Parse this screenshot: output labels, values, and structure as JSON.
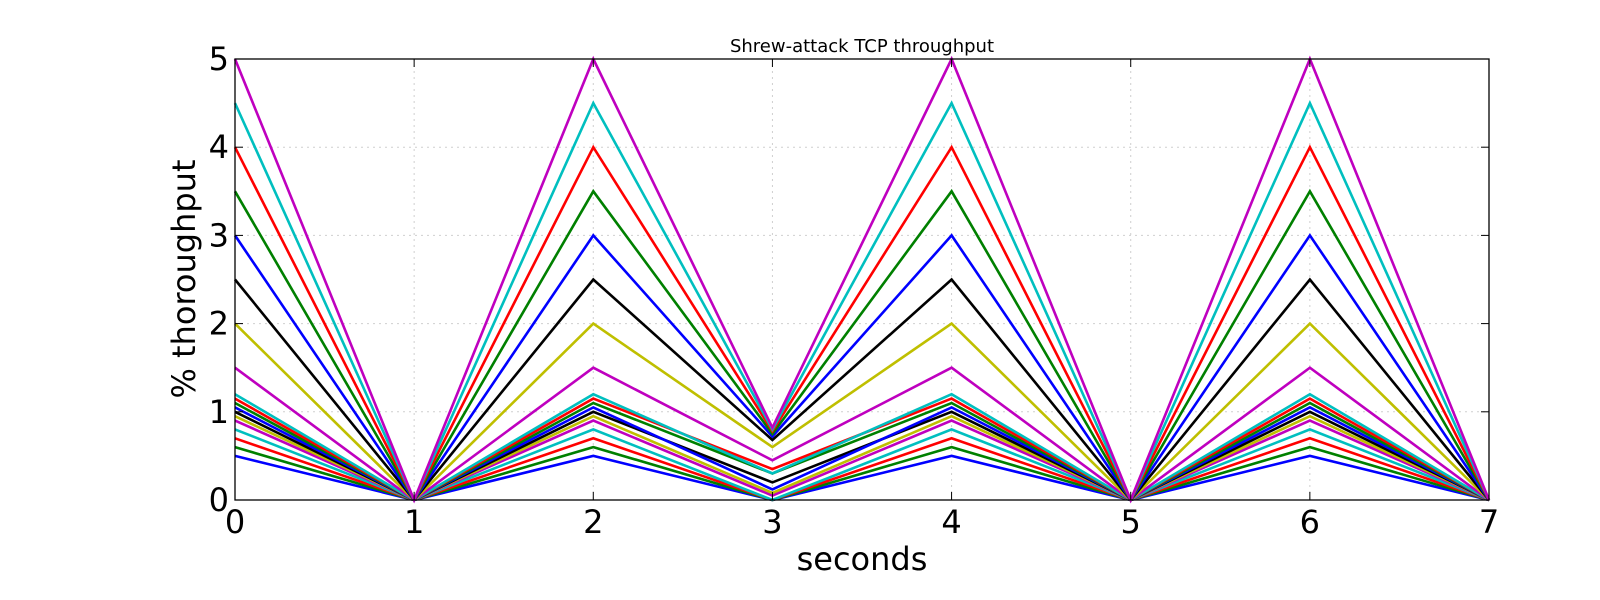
{
  "chart_data": {
    "type": "line",
    "title": "Shrew-attack TCP throughput",
    "xlabel": "seconds",
    "ylabel": "% thoroughput",
    "xlim": [
      0,
      7
    ],
    "ylim": [
      0,
      5
    ],
    "xticks": [
      0,
      1,
      2,
      3,
      4,
      5,
      6,
      7
    ],
    "yticks": [
      0,
      1,
      2,
      3,
      4,
      5
    ],
    "grid": true,
    "legend": "none",
    "x": [
      0,
      1,
      2,
      3,
      4,
      5,
      6,
      7
    ],
    "series": [
      {
        "color": "#0000ff",
        "values": [
          0.5,
          0,
          0.5,
          0,
          0.5,
          0,
          0.5,
          0
        ]
      },
      {
        "color": "#008000",
        "values": [
          0.6,
          0,
          0.6,
          0,
          0.6,
          0,
          0.6,
          0
        ]
      },
      {
        "color": "#ff0000",
        "values": [
          0.7,
          0,
          0.7,
          0,
          0.7,
          0,
          0.7,
          0
        ]
      },
      {
        "color": "#00bfbf",
        "values": [
          0.8,
          0,
          0.8,
          0,
          0.8,
          0,
          0.8,
          0
        ]
      },
      {
        "color": "#bf00bf",
        "values": [
          0.9,
          0,
          0.9,
          0.05,
          0.9,
          0,
          0.9,
          0
        ]
      },
      {
        "color": "#bfbf00",
        "values": [
          0.95,
          0,
          0.95,
          0.08,
          0.95,
          0,
          0.95,
          0
        ]
      },
      {
        "color": "#000000",
        "values": [
          1.0,
          0,
          1.0,
          0.2,
          1.0,
          0,
          1.0,
          0
        ]
      },
      {
        "color": "#0000ff",
        "values": [
          1.05,
          0,
          1.05,
          0.12,
          1.05,
          0,
          1.05,
          0
        ]
      },
      {
        "color": "#008000",
        "values": [
          1.1,
          0,
          1.1,
          0.3,
          1.1,
          0,
          1.1,
          0
        ]
      },
      {
        "color": "#ff0000",
        "values": [
          1.15,
          0,
          1.15,
          0.35,
          1.15,
          0,
          1.15,
          0
        ]
      },
      {
        "color": "#00bfbf",
        "values": [
          1.2,
          0,
          1.2,
          0.3,
          1.2,
          0,
          1.2,
          0
        ]
      },
      {
        "color": "#bf00bf",
        "values": [
          1.5,
          0,
          1.5,
          0.45,
          1.5,
          0,
          1.5,
          0
        ]
      },
      {
        "color": "#bfbf00",
        "values": [
          2.0,
          0,
          2.0,
          0.6,
          2.0,
          0,
          2.0,
          0
        ]
      },
      {
        "color": "#000000",
        "values": [
          2.5,
          0,
          2.5,
          0.68,
          2.5,
          0,
          2.5,
          0
        ]
      },
      {
        "color": "#0000ff",
        "values": [
          3.0,
          0,
          3.0,
          0.72,
          3.0,
          0,
          3.0,
          0
        ]
      },
      {
        "color": "#008000",
        "values": [
          3.5,
          0,
          3.5,
          0.75,
          3.5,
          0,
          3.5,
          0
        ]
      },
      {
        "color": "#ff0000",
        "values": [
          4.0,
          0,
          4.0,
          0.78,
          4.0,
          0,
          4.0,
          0
        ]
      },
      {
        "color": "#00bfbf",
        "values": [
          4.5,
          0,
          4.5,
          0.8,
          4.5,
          0,
          4.5,
          0
        ]
      },
      {
        "color": "#bf00bf",
        "values": [
          5.0,
          0,
          5.0,
          0.82,
          5.0,
          0,
          5.0,
          0
        ]
      }
    ]
  }
}
